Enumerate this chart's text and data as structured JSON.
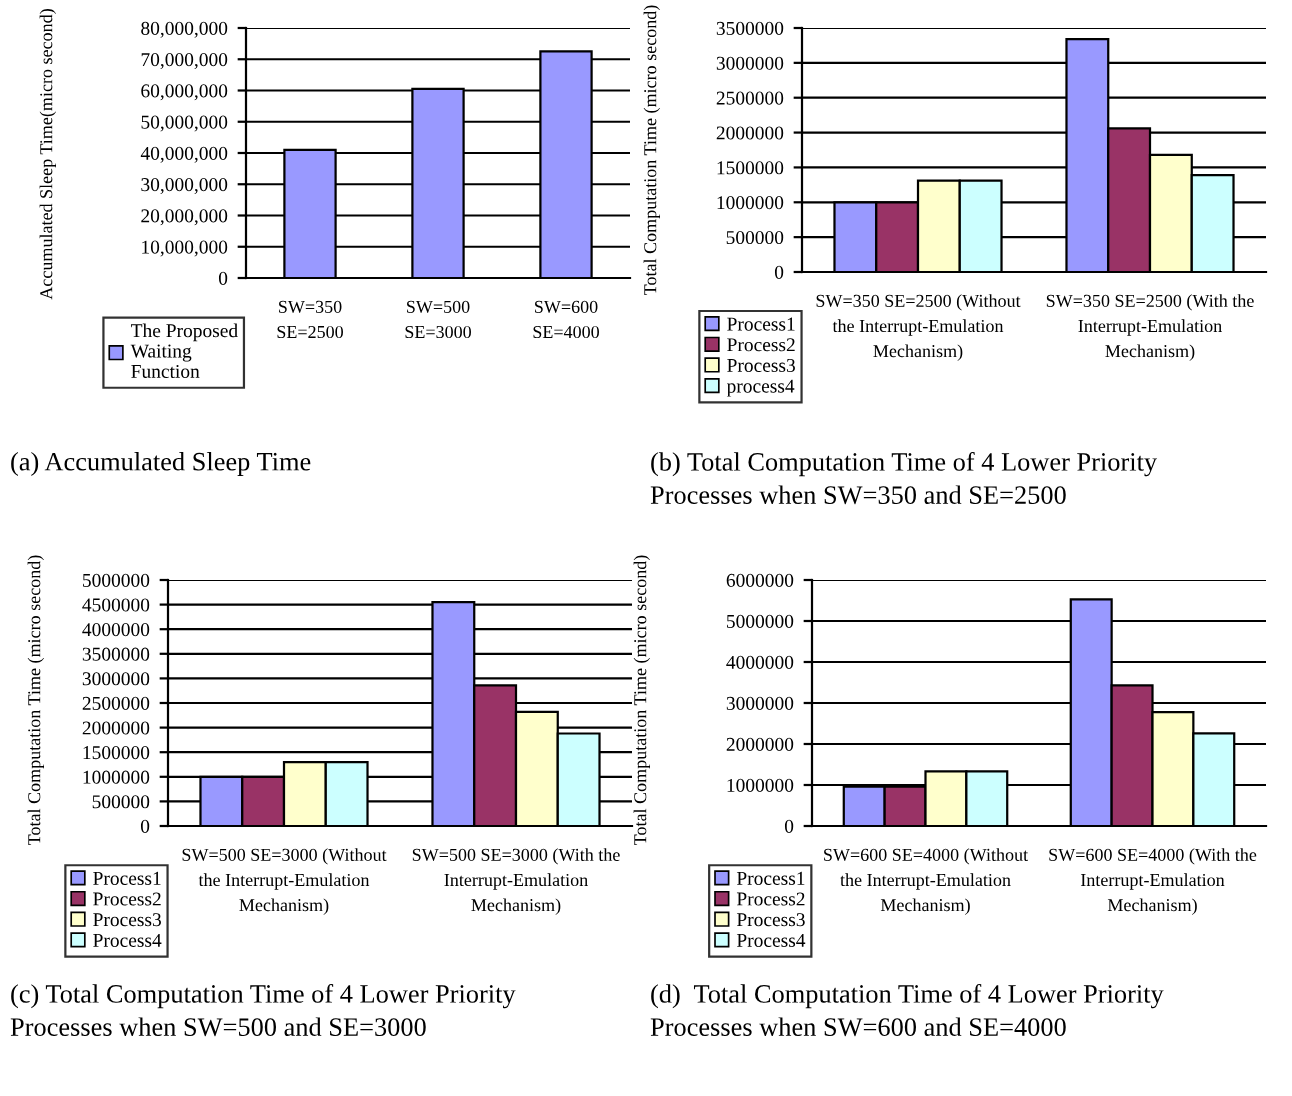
{
  "chart_data": [
    {
      "type": "bar",
      "title": "(a) Accumulated Sleep Time",
      "ylabel": "Accumulated Sleep Time(micro second)",
      "categories": [
        "SW=350 SE=2500",
        "SW=500 SE=3000",
        "SW=600 SE=4000"
      ],
      "series": [
        {
          "name": "The Proposed Waiting Function",
          "color": "#9999ff",
          "values": [
            41000000,
            60500000,
            72500000
          ]
        }
      ],
      "ylim": [
        0,
        80000000
      ],
      "yticks": [
        {
          "value": 0,
          "label": "0"
        },
        {
          "value": 10000000,
          "label": "10,000,000"
        },
        {
          "value": 20000000,
          "label": "20,000,000"
        },
        {
          "value": 30000000,
          "label": "30,000,000"
        },
        {
          "value": 40000000,
          "label": "40,000,000"
        },
        {
          "value": 50000000,
          "label": "50,000,000"
        },
        {
          "value": 60000000,
          "label": "60,000,000"
        },
        {
          "value": 70000000,
          "label": "70,000,000"
        },
        {
          "value": 80000000,
          "label": "80,000,000"
        }
      ],
      "grid": "y",
      "legend": "bottom left"
    },
    {
      "type": "bar",
      "title": "(b) Total Computation Time of 4 Lower Priority Processes when SW=350 and SE=2500",
      "ylabel": "Total Computation Time (micro second)",
      "categories": [
        "SW=350 SE=2500 (Without the Interrupt-Emulation Mechanism)",
        "SW=350 SE=2500 (With the Interrupt-Emulation Mechanism)"
      ],
      "series": [
        {
          "name": "Process1",
          "color": "#9999ff",
          "values": [
            1000000,
            3340000
          ]
        },
        {
          "name": "Process2",
          "color": "#993366",
          "values": [
            1000000,
            2060000
          ]
        },
        {
          "name": "Process3",
          "color": "#ffffcc",
          "values": [
            1310000,
            1680000
          ]
        },
        {
          "name": "process4",
          "color": "#ccffff",
          "values": [
            1310000,
            1390000
          ]
        }
      ],
      "ylim": [
        0,
        3500000
      ],
      "yticks": [
        0,
        500000,
        1000000,
        1500000,
        2000000,
        2500000,
        3000000,
        3500000
      ],
      "grid": "y",
      "legend": "bottom left"
    },
    {
      "type": "bar",
      "title": "(c) Total Computation Time of 4 Lower Priority Processes when SW=500 and SE=3000",
      "ylabel": "Total Computation Time (micro second)",
      "categories": [
        "SW=500 SE=3000 (Without the Interrupt-Emulation Mechanism)",
        "SW=500 SE=3000 (With the Interrupt-Emulation Mechanism)"
      ],
      "series": [
        {
          "name": "Process1",
          "color": "#9999ff",
          "values": [
            1000000,
            4550000
          ]
        },
        {
          "name": "Process2",
          "color": "#993366",
          "values": [
            1000000,
            2860000
          ]
        },
        {
          "name": "Process3",
          "color": "#ffffcc",
          "values": [
            1300000,
            2320000
          ]
        },
        {
          "name": "Process4",
          "color": "#ccffff",
          "values": [
            1300000,
            1880000
          ]
        }
      ],
      "ylim": [
        0,
        5000000
      ],
      "yticks": [
        0,
        500000,
        1000000,
        1500000,
        2000000,
        2500000,
        3000000,
        3500000,
        4000000,
        4500000,
        5000000
      ],
      "grid": "y",
      "legend": "bottom left"
    },
    {
      "type": "bar",
      "title": "(d)  Total Computation Time of 4 Lower Priority Processes when SW=600 and SE=4000",
      "ylabel": "Total Computation Time (micro second)",
      "categories": [
        "SW=600 SE=4000 (Without the Interrupt-Emulation Mechanism)",
        "SW=600 SE=4000 (With the Interrupt-Emulation Mechanism)"
      ],
      "series": [
        {
          "name": "Process1",
          "color": "#9999ff",
          "values": [
            960000,
            5530000
          ]
        },
        {
          "name": "Process2",
          "color": "#993366",
          "values": [
            960000,
            3430000
          ]
        },
        {
          "name": "Process3",
          "color": "#ffffcc",
          "values": [
            1330000,
            2780000
          ]
        },
        {
          "name": "Process4",
          "color": "#ccffff",
          "values": [
            1330000,
            2260000
          ]
        }
      ],
      "ylim": [
        0,
        6000000
      ],
      "yticks": [
        0,
        1000000,
        2000000,
        3000000,
        4000000,
        5000000,
        6000000
      ],
      "grid": "y",
      "legend": "bottom left"
    }
  ]
}
